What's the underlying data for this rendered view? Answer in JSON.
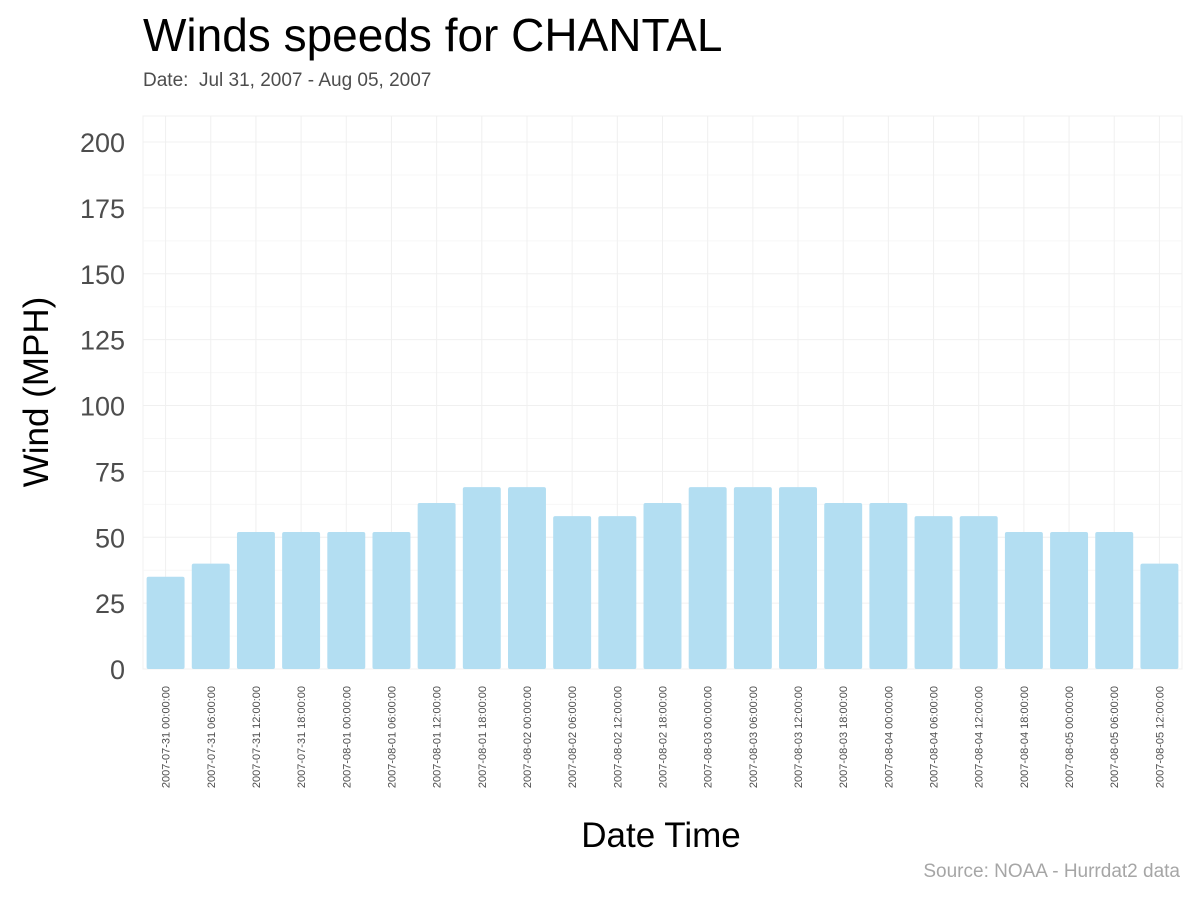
{
  "chart_data": {
    "type": "bar",
    "title": "Winds speeds for CHANTAL",
    "subtitle": "Date:  Jul 31, 2007 - Aug 05, 2007",
    "caption": "Source: NOAA - Hurrdat2 data",
    "xlabel": "Date Time",
    "ylabel": "Wind (MPH)",
    "ylim": [
      0,
      200
    ],
    "yticks": [
      0,
      25,
      50,
      75,
      100,
      125,
      150,
      175,
      200
    ],
    "grid": true,
    "legend": "none",
    "bar_color": "#b3def2",
    "categories": [
      "2007-07-31 00:00:00",
      "2007-07-31 06:00:00",
      "2007-07-31 12:00:00",
      "2007-07-31 18:00:00",
      "2007-08-01 00:00:00",
      "2007-08-01 06:00:00",
      "2007-08-01 12:00:00",
      "2007-08-01 18:00:00",
      "2007-08-02 00:00:00",
      "2007-08-02 06:00:00",
      "2007-08-02 12:00:00",
      "2007-08-02 18:00:00",
      "2007-08-03 00:00:00",
      "2007-08-03 06:00:00",
      "2007-08-03 12:00:00",
      "2007-08-03 18:00:00",
      "2007-08-04 00:00:00",
      "2007-08-04 06:00:00",
      "2007-08-04 12:00:00",
      "2007-08-04 18:00:00",
      "2007-08-05 00:00:00",
      "2007-08-05 06:00:00",
      "2007-08-05 12:00:00"
    ],
    "values": [
      35,
      40,
      52,
      52,
      52,
      52,
      63,
      69,
      69,
      58,
      58,
      63,
      69,
      69,
      69,
      63,
      63,
      58,
      58,
      52,
      52,
      52,
      40
    ]
  }
}
